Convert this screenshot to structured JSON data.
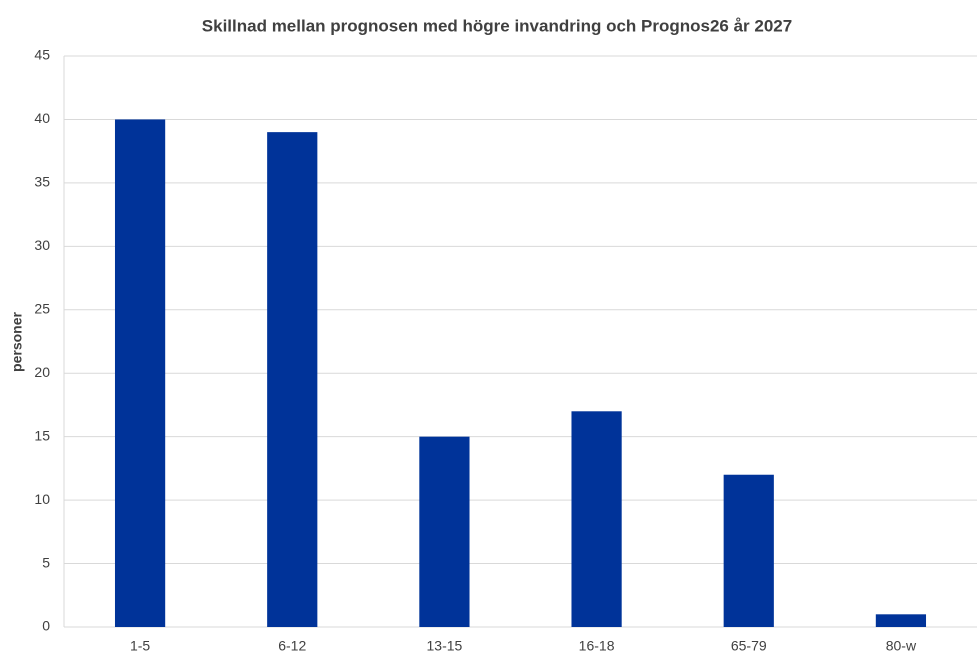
{
  "chart_data": {
    "type": "bar",
    "title": "Skillnad mellan prognosen med högre invandring och Prognos26 år 2027",
    "y_label": "personer",
    "categories": [
      "1-5",
      "6-12",
      "13-15",
      "16-18",
      "65-79",
      "80-w"
    ],
    "values": [
      40,
      39,
      15,
      17,
      12,
      1
    ],
    "color": "#003399",
    "ylim": [
      0,
      45
    ],
    "yticks": [
      0,
      5,
      10,
      15,
      20,
      25,
      30,
      35,
      40,
      45
    ],
    "grid": true
  }
}
